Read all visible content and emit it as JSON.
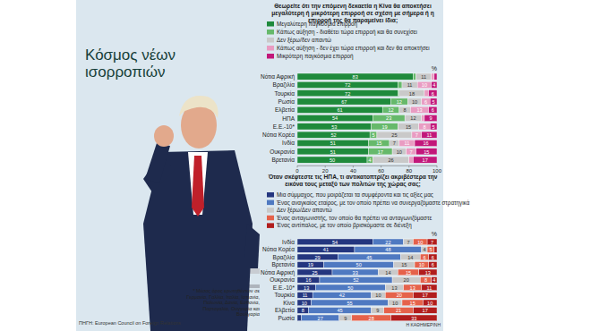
{
  "header": {
    "title": "Κόσμος νέων ισορροπιών",
    "footnote": "* Μέσος όρος ερωτηθέντων σε Γερμανία, Γαλλία, Ιταλία, Ισπανία, Πολωνία, Δανία, Εσθονία, Πορτογαλία, Ουγγαρία και Βουλγαρία",
    "source": "ΠΗΓΗ: European Council on Foreign Relations",
    "credit": "Η ΚΑΘΗΜΕΡΙΝΗ"
  },
  "chart_data": [
    {
      "type": "bar",
      "orientation": "horizontal",
      "stacked": true,
      "data_labels": true,
      "grid": false,
      "legend": "top",
      "tick_labels": "x",
      "title": "Θεωρείτε ότι την επόμενη δεκαετία η Κίνα θα αποκτήσει μεγαλύτερη ή μικρότερη επιρροή σε σχέση με σήμερα ή η επιρροή της θα παραμείνει ίδια;",
      "xlabel": "%",
      "categories": [
        "Νότια Αφρική",
        "Βραζιλία",
        "Τουρκία",
        "Ρωσία",
        "Ελβετία",
        "ΗΠΑ",
        "Ε.Ε.-10*",
        "Νότια Κορέα",
        "Ινδία",
        "Ουκρανία",
        "Βρετανία"
      ],
      "series": [
        {
          "name": "Μεγαλύτερη παγκόσμια επιρροή",
          "color": "#1f8a3c",
          "values": [
            83,
            72,
            72,
            67,
            61,
            54,
            53,
            52,
            51,
            51,
            50
          ]
        },
        {
          "name": "Κάπως αύξηση - διαθέτει τώρα επιρροή και θα συνεχίσει",
          "color": "#66b96b",
          "values": [
            2,
            3,
            1,
            12,
            12,
            23,
            19,
            5,
            15,
            17,
            4
          ]
        },
        {
          "name": "Δεν ξέρω/δεν απαντώ",
          "color": "#c9c9c9",
          "values": [
            11,
            11,
            18,
            10,
            8,
            12,
            15,
            25,
            7,
            10,
            26
          ]
        },
        {
          "name": "Κάπως αύξηση - δεν έχει τώρα επιρροή και δεν θα αποκτήσει",
          "color": "#e99cc2",
          "values": [
            2,
            10,
            3,
            6,
            13,
            2,
            8,
            7,
            11,
            7,
            3
          ]
        },
        {
          "name": "Μικρότερη παγκόσμια επιρροή",
          "color": "#c2187a",
          "values": [
            2,
            4,
            6,
            5,
            6,
            9,
            5,
            11,
            16,
            15,
            17
          ]
        }
      ],
      "xlim": [
        0,
        100
      ],
      "xticks": [
        0,
        20,
        40,
        60,
        80,
        100
      ]
    },
    {
      "type": "bar",
      "orientation": "horizontal",
      "stacked": true,
      "data_labels": true,
      "grid": false,
      "legend": "top",
      "tick_labels": false,
      "title": "Όταν σκέφτεστε τις ΗΠΑ, τι αντικατοπτρίζει ακριβέστερα την εικόνα τους μεταξύ των πολιτών της χώρας σας;",
      "xlabel": "%",
      "categories": [
        "Ινδία",
        "Νότια Κορέα",
        "Βραζιλία",
        "Βρετανία",
        "Νότια Αφρική",
        "Ουκρανία",
        "Ε.Ε.-10*",
        "Τουρκία",
        "Κίνα",
        "Ελβετία",
        "Ρωσία"
      ],
      "series": [
        {
          "name": "Μια σύμμαχος, που μοιράζεται τα συμφέροντα και τις αξίες μας",
          "color": "#24367f",
          "values": [
            54,
            41,
            29,
            19,
            25,
            16,
            13,
            11,
            10,
            8,
            3
          ]
        },
        {
          "name": "Ένας αναγκαίος εταίρος, με τον οποίο πρέπει να συνεργαζόμαστε στρατηγικά",
          "color": "#4f79c1",
          "values": [
            22,
            48,
            45,
            50,
            33,
            52,
            50,
            42,
            55,
            45,
            27
          ]
        },
        {
          "name": "Δεν ξέρω/Δεν απαντώ",
          "color": "#c9c9c9",
          "values": [
            7,
            4,
            14,
            15,
            14,
            20,
            13,
            10,
            10,
            9,
            9
          ]
        },
        {
          "name": "Ένας ανταγωνιστής, τον οποίο θα πρέπει να ανταγωνιζόμαστε",
          "color": "#e5624b",
          "values": [
            10,
            5,
            6,
            10,
            15,
            8,
            13,
            20,
            15,
            21,
            28
          ]
        },
        {
          "name": "Ένας αντίπαλος, με τον οποίο βρισκόμαστε σε διένεξη",
          "color": "#b11d1d",
          "values": [
            7,
            2,
            6,
            6,
            13,
            4,
            11,
            17,
            10,
            17,
            33
          ]
        }
      ],
      "xlim": [
        0,
        100
      ]
    }
  ]
}
